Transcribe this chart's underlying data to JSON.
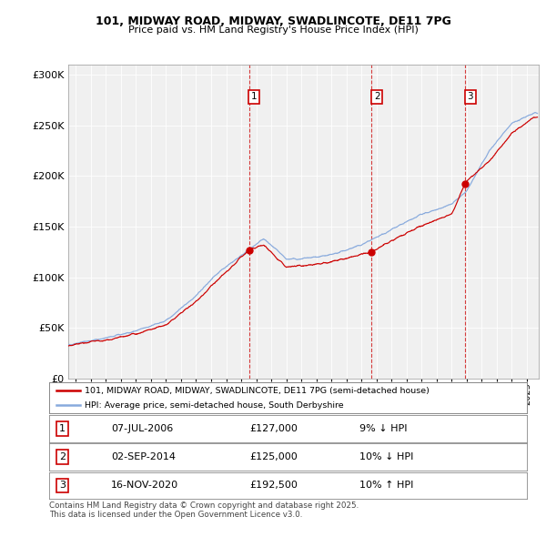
{
  "title1": "101, MIDWAY ROAD, MIDWAY, SWADLINCOTE, DE11 7PG",
  "title2": "Price paid vs. HM Land Registry's House Price Index (HPI)",
  "ylabel_ticks": [
    "£0",
    "£50K",
    "£100K",
    "£150K",
    "£200K",
    "£250K",
    "£300K"
  ],
  "ytick_vals": [
    0,
    50000,
    100000,
    150000,
    200000,
    250000,
    300000
  ],
  "ylim": [
    0,
    310000
  ],
  "xlim_start": 1994.5,
  "xlim_end": 2025.8,
  "chart_bg_color": "#f0f0f0",
  "fig_bg_color": "#ffffff",
  "red_color": "#cc0000",
  "blue_color": "#88aadd",
  "grid_color": "#ffffff",
  "sale_dates": [
    2006.52,
    2014.67,
    2020.88
  ],
  "sale_prices": [
    127000,
    125000,
    192500
  ],
  "sale_labels": [
    "1",
    "2",
    "3"
  ],
  "legend1": "101, MIDWAY ROAD, MIDWAY, SWADLINCOTE, DE11 7PG (semi-detached house)",
  "legend2": "HPI: Average price, semi-detached house, South Derbyshire",
  "table_data": [
    [
      "1",
      "07-JUL-2006",
      "£127,000",
      "9% ↓ HPI"
    ],
    [
      "2",
      "02-SEP-2014",
      "£125,000",
      "10% ↓ HPI"
    ],
    [
      "3",
      "16-NOV-2020",
      "£192,500",
      "10% ↑ HPI"
    ]
  ],
  "footnote": "Contains HM Land Registry data © Crown copyright and database right 2025.\nThis data is licensed under the Open Government Licence v3.0.",
  "xlabel_years": [
    1995,
    1996,
    1997,
    1998,
    1999,
    2000,
    2001,
    2002,
    2003,
    2004,
    2005,
    2006,
    2007,
    2008,
    2009,
    2010,
    2011,
    2012,
    2013,
    2014,
    2015,
    2016,
    2017,
    2018,
    2019,
    2020,
    2021,
    2022,
    2023,
    2024,
    2025
  ],
  "hpi_anchors_t": [
    1994.5,
    1995,
    1997,
    1999,
    2001,
    2003,
    2004.5,
    2007.5,
    2009,
    2010,
    2012,
    2014,
    2016,
    2018,
    2020,
    2021,
    2022.5,
    2024,
    2025.5
  ],
  "hpi_anchors_v": [
    33000,
    35000,
    40000,
    47000,
    57000,
    82000,
    105000,
    138000,
    118000,
    118000,
    122000,
    132000,
    147000,
    162000,
    172000,
    185000,
    225000,
    252000,
    262000
  ],
  "pp_anchors_t": [
    1994.5,
    1995,
    1997,
    1999,
    2001,
    2003,
    2004.5,
    2006.52,
    2007.5,
    2009,
    2010,
    2012,
    2014.67,
    2016,
    2018,
    2020,
    2020.88,
    2021,
    2022.5,
    2024,
    2025.5
  ],
  "pp_anchors_v": [
    32000,
    34000,
    38000,
    44000,
    53000,
    76000,
    98000,
    127000,
    132000,
    110000,
    111000,
    115000,
    125000,
    136000,
    151000,
    162000,
    192500,
    195000,
    215000,
    242000,
    258000
  ]
}
